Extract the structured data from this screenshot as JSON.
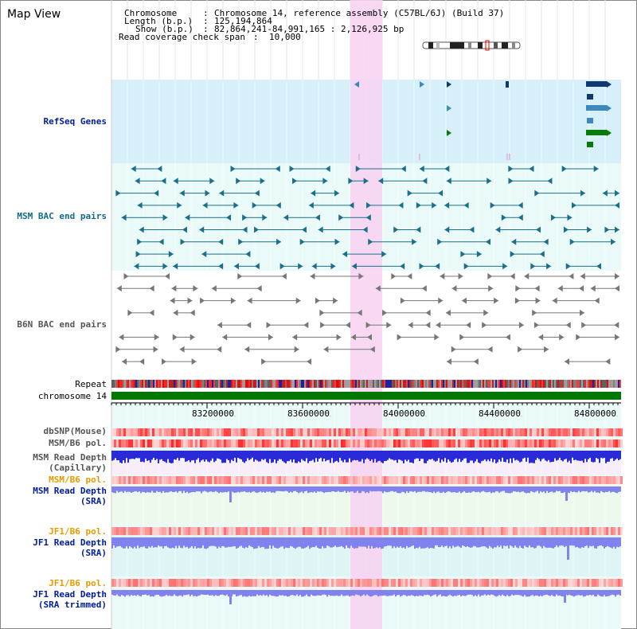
{
  "header": {
    "title": "Map View",
    "chromosome_label": "Chromosome",
    "chromosome_value": "Chromosome 14, reference assembly (C57BL/6J) (Build 37)",
    "length_label": "Length (b.p.)",
    "length_value": "125,194,864",
    "show_label": "Show (b.p.)",
    "show_value": "82,864,241-84,991,165 : 2,126,925 bp",
    "span_label": "Read coverage check span",
    "span_value": "10,000"
  },
  "tracks": {
    "refseq": "RefSeq Genes",
    "msm_bac": "MSM BAC end pairs",
    "b6n_bac": "B6N BAC end pairs",
    "repeat": "Repeat",
    "chromosome": "chromosome 14",
    "dbsnp": "dbSNP(Mouse)",
    "msm_b6_pol_1": "MSM/B6 pol.",
    "msm_read_depth_cap_1": "MSM Read Depth",
    "msm_read_depth_cap_2": "(Capillary)",
    "msm_b6_pol_2": "MSM/B6 pol.",
    "msm_read_depth_sra_1": "MSM Read Depth",
    "msm_read_depth_sra_2": "(SRA)",
    "jf1_b6_pol_1": "JF1/B6 pol.",
    "jf1_read_depth_sra_1": "JF1 Read Depth",
    "jf1_read_depth_sra_2": "(SRA)",
    "jf1_b6_pol_2": "JF1/B6 pol.",
    "jf1_read_depth_trim_1": "JF1 Read Depth",
    "jf1_read_depth_trim_2": "(SRA trimmed)"
  },
  "axis": {
    "ticks": [
      "83200000",
      "83600000",
      "84000000",
      "84400000",
      "84800000"
    ],
    "range": [
      82864241,
      84991165
    ]
  },
  "colors": {
    "refseq_bg": "#d6eff9",
    "bac_bg": "#eafaf9",
    "highlight": "#f7d4f2",
    "gene_dark": "#0f3872",
    "gene_mid": "#3e88c0",
    "gene_green": "#0a7a0a",
    "chromosome_bar": "#007700",
    "depth_blue": "#2a2ad8",
    "depth_lav": "#8282ee"
  }
}
